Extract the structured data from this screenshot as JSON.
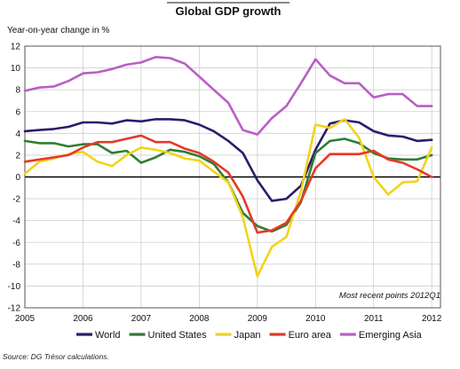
{
  "chart_data": {
    "type": "line",
    "title": "Global GDP growth",
    "ylabel": "Year-on-year change in %",
    "xlabel": "",
    "x": [
      2005.0,
      2005.25,
      2005.5,
      2005.75,
      2006.0,
      2006.25,
      2006.5,
      2006.75,
      2007.0,
      2007.25,
      2007.5,
      2007.75,
      2008.0,
      2008.25,
      2008.5,
      2008.75,
      2009.0,
      2009.25,
      2009.5,
      2009.75,
      2010.0,
      2010.25,
      2010.5,
      2010.75,
      2011.0,
      2011.25,
      2011.5,
      2011.75,
      2012.0
    ],
    "x_ticks": [
      "2005",
      "2006",
      "2007",
      "2008",
      "2009",
      "2010",
      "2011",
      "2012"
    ],
    "x_tick_values": [
      2005,
      2006,
      2007,
      2008,
      2009,
      2010,
      2011,
      2012
    ],
    "xlim": [
      2005,
      2012.15
    ],
    "ylim": [
      -12,
      12
    ],
    "y_ticks": [
      "-12",
      "-10",
      "-8",
      "-6",
      "-4",
      "-2",
      "0",
      "2",
      "4",
      "6",
      "8",
      "10",
      "12"
    ],
    "y_tick_values": [
      -12,
      -10,
      -8,
      -6,
      -4,
      -2,
      0,
      2,
      4,
      6,
      8,
      10,
      12
    ],
    "grid": true,
    "legend_position": "bottom",
    "annotation": "Most recent points 2012Q1",
    "source": "Source: DG Trésor calculations.",
    "series": [
      {
        "name": "World",
        "color": "#2e1a6e",
        "values": [
          4.2,
          4.3,
          4.4,
          4.6,
          5.0,
          5.0,
          4.9,
          5.2,
          5.1,
          5.3,
          5.3,
          5.2,
          4.8,
          4.2,
          3.3,
          2.2,
          -0.3,
          -2.2,
          -2.0,
          -0.8,
          2.5,
          4.9,
          5.2,
          5.0,
          4.2,
          3.8,
          3.7,
          3.3,
          3.4
        ]
      },
      {
        "name": "United States",
        "color": "#2e7d32",
        "values": [
          3.3,
          3.1,
          3.1,
          2.8,
          3.0,
          3.0,
          2.2,
          2.4,
          1.3,
          1.8,
          2.5,
          2.3,
          1.9,
          1.2,
          -0.5,
          -3.3,
          -4.5,
          -5.0,
          -4.4,
          -2.3,
          2.2,
          3.3,
          3.5,
          3.1,
          2.2,
          1.7,
          1.6,
          1.6,
          2.0
        ]
      },
      {
        "name": "Japan",
        "color": "#f2d31b",
        "values": [
          0.3,
          1.4,
          1.7,
          2.1,
          2.3,
          1.4,
          1.0,
          2.0,
          2.7,
          2.5,
          2.2,
          1.7,
          1.5,
          0.5,
          -0.5,
          -3.7,
          -9.1,
          -6.4,
          -5.5,
          -1.3,
          4.8,
          4.5,
          5.3,
          3.6,
          0.0,
          -1.6,
          -0.5,
          -0.4,
          2.7
        ]
      },
      {
        "name": "Euro area",
        "color": "#e53a28",
        "values": [
          1.4,
          1.6,
          1.8,
          2.0,
          2.7,
          3.2,
          3.2,
          3.5,
          3.8,
          3.2,
          3.2,
          2.6,
          2.2,
          1.4,
          0.4,
          -1.8,
          -5.1,
          -4.9,
          -4.2,
          -2.2,
          0.8,
          2.1,
          2.1,
          2.1,
          2.4,
          1.6,
          1.3,
          0.7,
          0.0
        ]
      },
      {
        "name": "Emerging Asia",
        "color": "#b85fc4",
        "values": [
          7.9,
          8.2,
          8.3,
          8.8,
          9.5,
          9.6,
          9.9,
          10.3,
          10.5,
          11.0,
          10.9,
          10.4,
          9.2,
          8.0,
          6.8,
          4.3,
          3.9,
          5.4,
          6.5,
          8.6,
          10.8,
          9.3,
          8.6,
          8.6,
          7.3,
          7.6,
          7.6,
          6.5,
          6.5
        ]
      }
    ]
  }
}
